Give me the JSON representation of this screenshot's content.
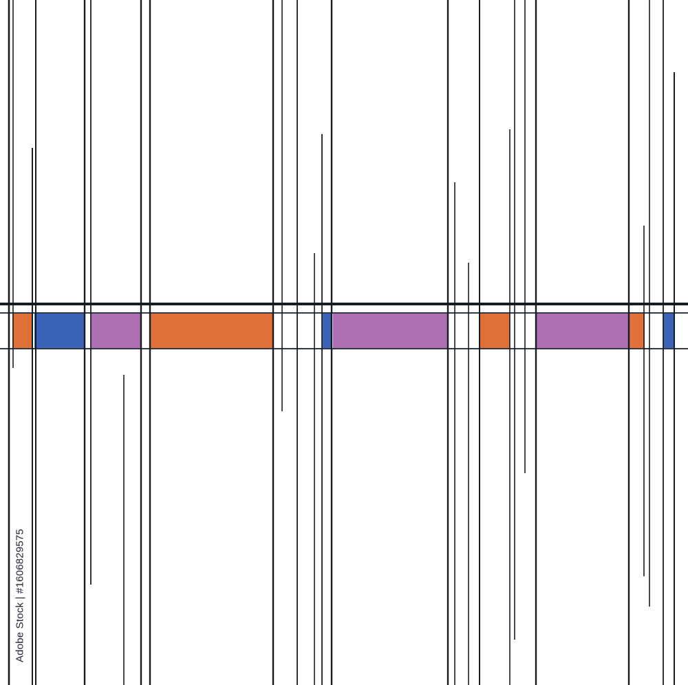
{
  "artwork": {
    "palette": {
      "line": "#141c24",
      "orange": "#e0703a",
      "blue": "#3b64b8",
      "purple": "#ad6fb1",
      "background": "#ffffff"
    },
    "block_colors_left_to_right": [
      "orange",
      "blue",
      "purple",
      "orange",
      "blue",
      "purple",
      "orange",
      "purple",
      "orange",
      "blue"
    ]
  },
  "stock_id": "Adobe Stock | #1606829575"
}
